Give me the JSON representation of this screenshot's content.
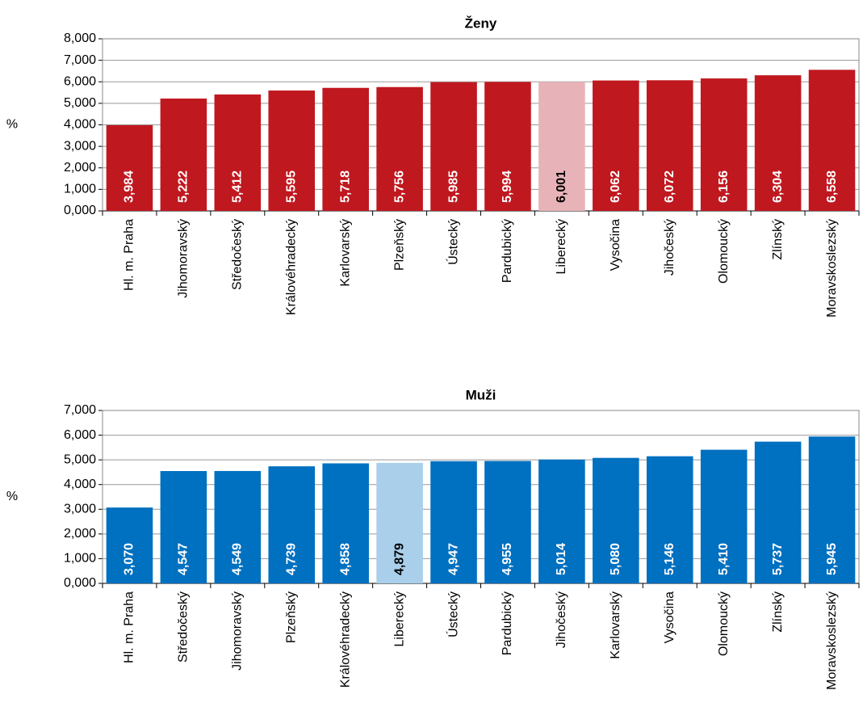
{
  "chart_data": [
    {
      "type": "bar",
      "title": "Ženy",
      "y_label": "%",
      "categories": [
        "Hl. m. Praha",
        "Jihomoravský",
        "Středočeský",
        "Královéhradecký",
        "Karlovarský",
        "Plzeňský",
        "Ústecký",
        "Pardubický",
        "Liberecký",
        "Vysočina",
        "Jihočeský",
        "Olomoucký",
        "Zlínský",
        "Moravskoslezský"
      ],
      "values": [
        3.984,
        5.222,
        5.412,
        5.595,
        5.718,
        5.756,
        5.985,
        5.994,
        6.001,
        6.062,
        6.072,
        6.156,
        6.304,
        6.558
      ],
      "value_labels": [
        "3,984",
        "5,222",
        "5,412",
        "5,595",
        "5,718",
        "5,756",
        "5,985",
        "5,994",
        "6,001",
        "6,062",
        "6,072",
        "6,156",
        "6,304",
        "6,558"
      ],
      "colors": [
        "#c0181f",
        "#c0181f",
        "#c0181f",
        "#c0181f",
        "#c0181f",
        "#c0181f",
        "#c0181f",
        "#c0181f",
        "#e8b3b8",
        "#c0181f",
        "#c0181f",
        "#c0181f",
        "#c0181f",
        "#c0181f"
      ],
      "ylim": [
        0,
        8
      ],
      "yticks": [
        {
          "value": 0,
          "label": "0,000"
        },
        {
          "value": 1,
          "label": "1,000"
        },
        {
          "value": 2,
          "label": "2,000"
        },
        {
          "value": 3,
          "label": "3,000"
        },
        {
          "value": 4,
          "label": "4,000"
        },
        {
          "value": 5,
          "label": "5,000"
        },
        {
          "value": 6,
          "label": "6,000"
        },
        {
          "value": 7,
          "label": "7,000"
        },
        {
          "value": 8,
          "label": "8,000"
        }
      ],
      "grid": true
    },
    {
      "type": "bar",
      "title": "Muži",
      "y_label": "%",
      "categories": [
        "Hl. m. Praha",
        "Středočeský",
        "Jihomoravský",
        "Plzeňský",
        "Královéhradecký",
        "Liberecký",
        "Ústecký",
        "Pardubický",
        "Jihočeský",
        "Karlovarský",
        "Vysočina",
        "Olomoucký",
        "Zlínský",
        "Moravskoslezský"
      ],
      "values": [
        3.07,
        4.547,
        4.549,
        4.739,
        4.858,
        4.879,
        4.947,
        4.955,
        5.014,
        5.08,
        5.146,
        5.41,
        5.737,
        5.945
      ],
      "value_labels": [
        "3,070",
        "4,547",
        "4,549",
        "4,739",
        "4,858",
        "4,879",
        "4,947",
        "4,955",
        "5,014",
        "5,080",
        "5,146",
        "5,410",
        "5,737",
        "5,945"
      ],
      "colors": [
        "#0070c0",
        "#0070c0",
        "#0070c0",
        "#0070c0",
        "#0070c0",
        "#a9cfea",
        "#0070c0",
        "#0070c0",
        "#0070c0",
        "#0070c0",
        "#0070c0",
        "#0070c0",
        "#0070c0",
        "#0070c0"
      ],
      "ylim": [
        0,
        7
      ],
      "yticks": [
        {
          "value": 0,
          "label": "0,000"
        },
        {
          "value": 1,
          "label": "1,000"
        },
        {
          "value": 2,
          "label": "2,000"
        },
        {
          "value": 3,
          "label": "3,000"
        },
        {
          "value": 4,
          "label": "4,000"
        },
        {
          "value": 5,
          "label": "5,000"
        },
        {
          "value": 6,
          "label": "6,000"
        },
        {
          "value": 7,
          "label": "7,000"
        }
      ],
      "grid": true
    }
  ]
}
